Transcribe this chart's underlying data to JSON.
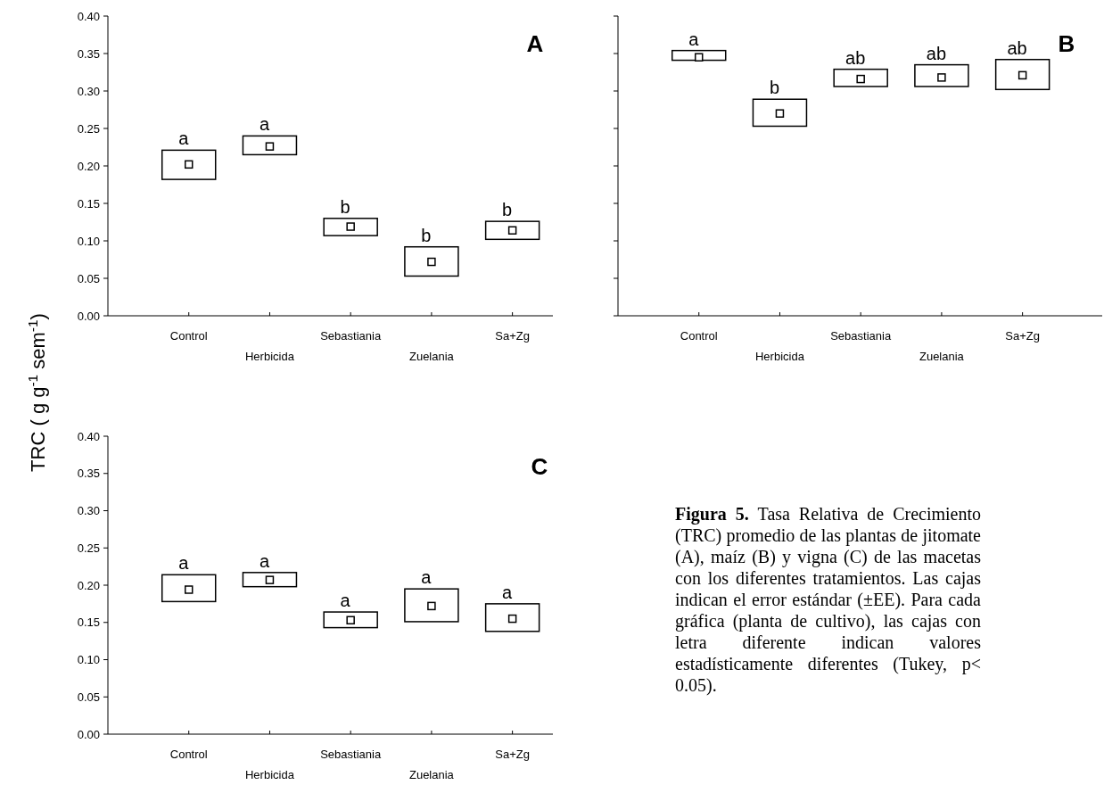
{
  "chart_data": [
    {
      "type": "box",
      "title": "A",
      "ylabel": "TRC ( g g$^{-1}$ sem$^{-1}$)",
      "categories": [
        "Control",
        "Herbicida",
        "Sebastiania",
        "Zuelania",
        "Sa+Zg"
      ],
      "boxes": [
        {
          "low": 0.182,
          "q1": 0.182,
          "median": 0.202,
          "q3": 0.221,
          "high": 0.221
        },
        {
          "low": 0.215,
          "q1": 0.215,
          "median": 0.226,
          "q3": 0.24,
          "high": 0.24
        },
        {
          "low": 0.107,
          "q1": 0.107,
          "median": 0.119,
          "q3": 0.13,
          "high": 0.13
        },
        {
          "low": 0.053,
          "q1": 0.053,
          "median": 0.072,
          "q3": 0.092,
          "high": 0.092
        },
        {
          "low": 0.102,
          "q1": 0.102,
          "median": 0.114,
          "q3": 0.126,
          "high": 0.126
        }
      ],
      "ylim": [
        0,
        0.4
      ],
      "yticks": [
        {
          "value": 0,
          "label": "0.00"
        },
        {
          "value": 0.05,
          "label": "0.05"
        },
        {
          "value": 0.1,
          "label": "0.10"
        },
        {
          "value": 0.15,
          "label": "0.15"
        },
        {
          "value": 0.2,
          "label": "0.20"
        },
        {
          "value": 0.25,
          "label": "0.25"
        },
        {
          "value": 0.3,
          "label": "0.30"
        },
        {
          "value": 0.35,
          "label": "0.35"
        },
        {
          "value": 0.4,
          "label": "0.40"
        }
      ],
      "marker": "square",
      "annotations": [
        {
          "text": "a",
          "x": "Control",
          "y": 0.221
        },
        {
          "text": "a",
          "x": "Herbicida",
          "y": 0.24
        },
        {
          "text": "b",
          "x": "Sebastiania",
          "y": 0.13
        },
        {
          "text": "b",
          "x": "Zuelania",
          "y": 0.092
        },
        {
          "text": "b",
          "x": "Sa+Zg",
          "y": 0.126
        }
      ]
    },
    {
      "type": "box",
      "title": "B",
      "categories": [
        "Control",
        "Herbicida",
        "Sebastiania",
        "Zuelania",
        "Sa+Zg"
      ],
      "boxes": [
        {
          "low": 0.341,
          "q1": 0.341,
          "median": 0.345,
          "q3": 0.354,
          "high": 0.354
        },
        {
          "low": 0.253,
          "q1": 0.253,
          "median": 0.27,
          "q3": 0.289,
          "high": 0.289
        },
        {
          "low": 0.306,
          "q1": 0.306,
          "median": 0.316,
          "q3": 0.329,
          "high": 0.329
        },
        {
          "low": 0.306,
          "q1": 0.306,
          "median": 0.318,
          "q3": 0.335,
          "high": 0.335
        },
        {
          "low": 0.302,
          "q1": 0.302,
          "median": 0.321,
          "q3": 0.342,
          "high": 0.342
        }
      ],
      "ylim": [
        0,
        0.4
      ],
      "yticks": [
        0,
        0.05,
        0.1,
        0.15,
        0.2,
        0.25,
        0.3,
        0.35,
        0.4
      ],
      "tick_labels": "x",
      "marker": "square",
      "annotations": [
        {
          "text": "a",
          "x": "Control",
          "y": 0.354
        },
        {
          "text": "b",
          "x": "Herbicida",
          "y": 0.289
        },
        {
          "text": "ab",
          "x": "Sebastiania",
          "y": 0.329
        },
        {
          "text": "ab",
          "x": "Zuelania",
          "y": 0.335
        },
        {
          "text": "ab",
          "x": "Sa+Zg",
          "y": 0.342
        }
      ]
    },
    {
      "type": "box",
      "title": "C",
      "categories": [
        "Control",
        "Herbicida",
        "Sebastiania",
        "Zuelania",
        "Sa+Zg"
      ],
      "boxes": [
        {
          "low": 0.178,
          "q1": 0.178,
          "median": 0.194,
          "q3": 0.214,
          "high": 0.214
        },
        {
          "low": 0.198,
          "q1": 0.198,
          "median": 0.207,
          "q3": 0.217,
          "high": 0.217
        },
        {
          "low": 0.143,
          "q1": 0.143,
          "median": 0.153,
          "q3": 0.164,
          "high": 0.164
        },
        {
          "low": 0.151,
          "q1": 0.151,
          "median": 0.172,
          "q3": 0.195,
          "high": 0.195
        },
        {
          "low": 0.138,
          "q1": 0.138,
          "median": 0.155,
          "q3": 0.175,
          "high": 0.175
        }
      ],
      "ylim": [
        0,
        0.4
      ],
      "yticks": [
        {
          "value": 0,
          "label": "0.00"
        },
        {
          "value": 0.05,
          "label": "0.05"
        },
        {
          "value": 0.1,
          "label": "0.10"
        },
        {
          "value": 0.15,
          "label": "0.15"
        },
        {
          "value": 0.2,
          "label": "0.20"
        },
        {
          "value": 0.25,
          "label": "0.25"
        },
        {
          "value": 0.3,
          "label": "0.30"
        },
        {
          "value": 0.35,
          "label": "0.35"
        },
        {
          "value": 0.4,
          "label": "0.40"
        }
      ],
      "marker": "square",
      "annotations": [
        {
          "text": "a",
          "x": "Control",
          "y": 0.214
        },
        {
          "text": "a",
          "x": "Herbicida",
          "y": 0.217
        },
        {
          "text": "a",
          "x": "Sebastiania",
          "y": 0.164
        },
        {
          "text": "a",
          "x": "Zuelania",
          "y": 0.195
        },
        {
          "text": "a",
          "x": "Sa+Zg",
          "y": 0.175
        },
        "Figura 5.",
        "Tasa Relativa de Crecimiento (TRC) promedio de las plantas de jitomate (A), maíz (B) y vigna (C) de las macetas con los diferentes tratamientos. Las cajas indican el error estándar (±EE). Para cada gráfica (planta de cultivo), las cajas con letra diferente indican valores estadísticamente diferentes (Tukey, p< 0.05)."
      ]
    }
  ]
}
